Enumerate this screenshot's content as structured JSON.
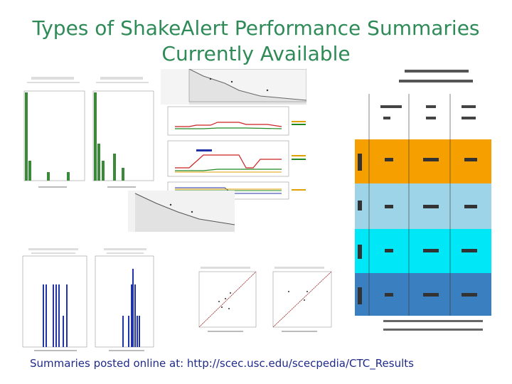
{
  "slide": {
    "title_line1": "Types of ShakeAlert Performance Summaries",
    "title_line2": "Currently Available",
    "footer": "Summaries posted online at: http://scec.usc.edu/scecpedia/CTC_Results",
    "colors": {
      "title": "#2e8b57",
      "footer": "#1f2a8a",
      "green_bar": "#3a8a3a",
      "blue_bar": "#2233aa",
      "row_orange": "#f5a000",
      "row_lightblue": "#9ed4e8",
      "row_cyan": "#00e8f8",
      "row_steel": "#3a7fbf"
    }
  },
  "summary_table": {
    "rows": [
      {
        "color": "#f5a000"
      },
      {
        "color": "#9ed4e8"
      },
      {
        "color": "#00e8f8"
      },
      {
        "color": "#3a7fbf"
      }
    ]
  }
}
